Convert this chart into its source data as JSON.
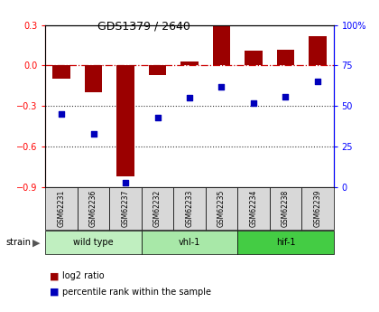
{
  "title": "GDS1379 / 2640",
  "samples": [
    "GSM62231",
    "GSM62236",
    "GSM62237",
    "GSM62232",
    "GSM62233",
    "GSM62235",
    "GSM62234",
    "GSM62238",
    "GSM62239"
  ],
  "log2_ratio": [
    -0.1,
    -0.2,
    -0.82,
    -0.07,
    0.03,
    0.3,
    0.11,
    0.12,
    0.22
  ],
  "percentile_rank": [
    45,
    33,
    3,
    43,
    55,
    62,
    52,
    56,
    65
  ],
  "ylim_left": [
    -0.9,
    0.3
  ],
  "ylim_right": [
    0,
    100
  ],
  "yticks_left": [
    0.3,
    0.0,
    -0.3,
    -0.6,
    -0.9
  ],
  "yticks_right": [
    100,
    75,
    50,
    25,
    0
  ],
  "ytick_labels_right": [
    "100%",
    "75",
    "50",
    "25",
    "0"
  ],
  "groups": [
    {
      "label": "wild type",
      "start": 0,
      "end": 3,
      "color": "#c0efc0"
    },
    {
      "label": "vhl-1",
      "start": 3,
      "end": 6,
      "color": "#a8e8a8"
    },
    {
      "label": "hif-1",
      "start": 6,
      "end": 9,
      "color": "#44cc44"
    }
  ],
  "bar_color": "#9b0000",
  "dot_color": "#0000bb",
  "background_color": "#ffffff",
  "zero_line_color": "#cc0000",
  "dotted_line_color": "#333333",
  "legend_bar_label": "log2 ratio",
  "legend_dot_label": "percentile rank within the sample"
}
